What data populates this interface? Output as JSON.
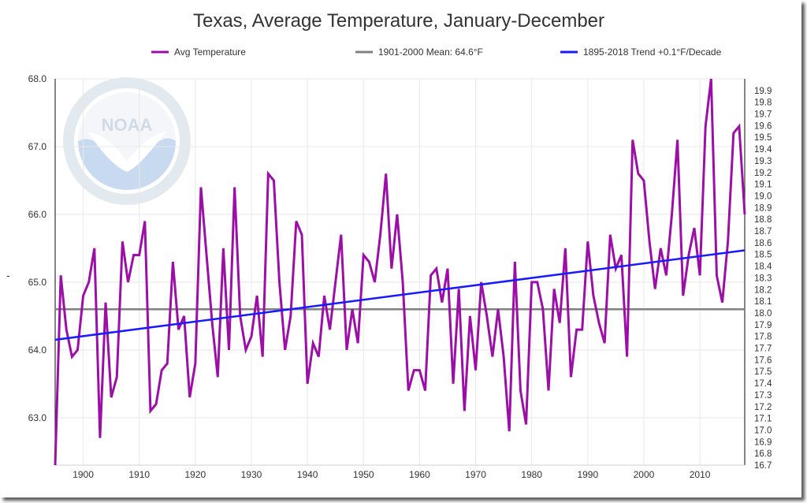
{
  "chart_data": {
    "type": "line",
    "title": "Texas, Average Temperature, January-December",
    "xlabel": "",
    "ylabel": "",
    "legend_position": "top",
    "grid": true,
    "xlim": [
      1895,
      2018
    ],
    "ylim": [
      62.3,
      68.0
    ],
    "y2lim": [
      16.7,
      20.0
    ],
    "x_ticks": [
      1900,
      1910,
      1920,
      1930,
      1940,
      1950,
      1960,
      1970,
      1980,
      1990,
      2000,
      2010
    ],
    "y_ticks": [
      "63.0",
      "64.0",
      "65.0",
      "66.0",
      "67.0",
      "68.0"
    ],
    "y2_ticks": [
      "16.7",
      "16.8",
      "16.9",
      "17.0",
      "17.1",
      "17.2",
      "17.3",
      "17.4",
      "17.5",
      "17.6",
      "17.7",
      "17.8",
      "17.9",
      "18.0",
      "18.1",
      "18.2",
      "18.3",
      "18.4",
      "18.5",
      "18.6",
      "18.7",
      "18.8",
      "18.9",
      "19.0",
      "19.1",
      "19.2",
      "19.3",
      "19.4",
      "19.5",
      "19.6",
      "19.7",
      "19.8",
      "19.9"
    ],
    "series": [
      {
        "name": "Avg Temperature",
        "color": "#9b0fa6",
        "x_start": 1895,
        "values": [
          62.3,
          65.1,
          64.3,
          63.9,
          64.0,
          64.8,
          65.0,
          65.5,
          62.7,
          64.7,
          63.3,
          63.6,
          65.6,
          65.0,
          65.4,
          65.4,
          65.9,
          63.1,
          63.2,
          63.7,
          63.8,
          65.3,
          64.3,
          64.5,
          63.3,
          63.8,
          66.4,
          65.4,
          64.4,
          63.6,
          65.5,
          64.0,
          66.4,
          64.5,
          64.0,
          64.2,
          64.8,
          63.9,
          66.6,
          66.5,
          65.0,
          64.0,
          64.5,
          65.9,
          65.7,
          63.5,
          64.1,
          63.9,
          64.8,
          64.3,
          65.0,
          65.7,
          64.0,
          64.6,
          64.1,
          65.4,
          65.3,
          65.0,
          65.7,
          66.6,
          65.2,
          66.0,
          65.0,
          63.4,
          63.7,
          63.7,
          63.4,
          65.1,
          65.2,
          64.7,
          65.2,
          63.5,
          64.9,
          63.1,
          64.5,
          63.7,
          65.0,
          64.5,
          63.9,
          64.6,
          63.9,
          62.8,
          65.3,
          63.4,
          62.9,
          65.0,
          65.0,
          64.6,
          63.4,
          64.9,
          64.4,
          65.5,
          63.6,
          64.3,
          64.3,
          65.6,
          64.8,
          64.4,
          64.1,
          65.7,
          65.2,
          65.4,
          63.9,
          67.1,
          66.6,
          66.5,
          65.6,
          64.9,
          65.5,
          65.1,
          66.0,
          67.1,
          64.8,
          65.4,
          65.8,
          65.1,
          67.3,
          68.0,
          65.1,
          64.7,
          65.6,
          67.2,
          67.3,
          66.0
        ]
      },
      {
        "name": "1901-2000 Mean: 64.6°F",
        "color": "#808080",
        "value": 64.6
      },
      {
        "name": "1895-2018 Trend +0.1°F/Decade",
        "color": "#1a1aff",
        "x": [
          1895,
          2018
        ],
        "values": [
          64.15,
          65.47
        ]
      }
    ]
  }
}
